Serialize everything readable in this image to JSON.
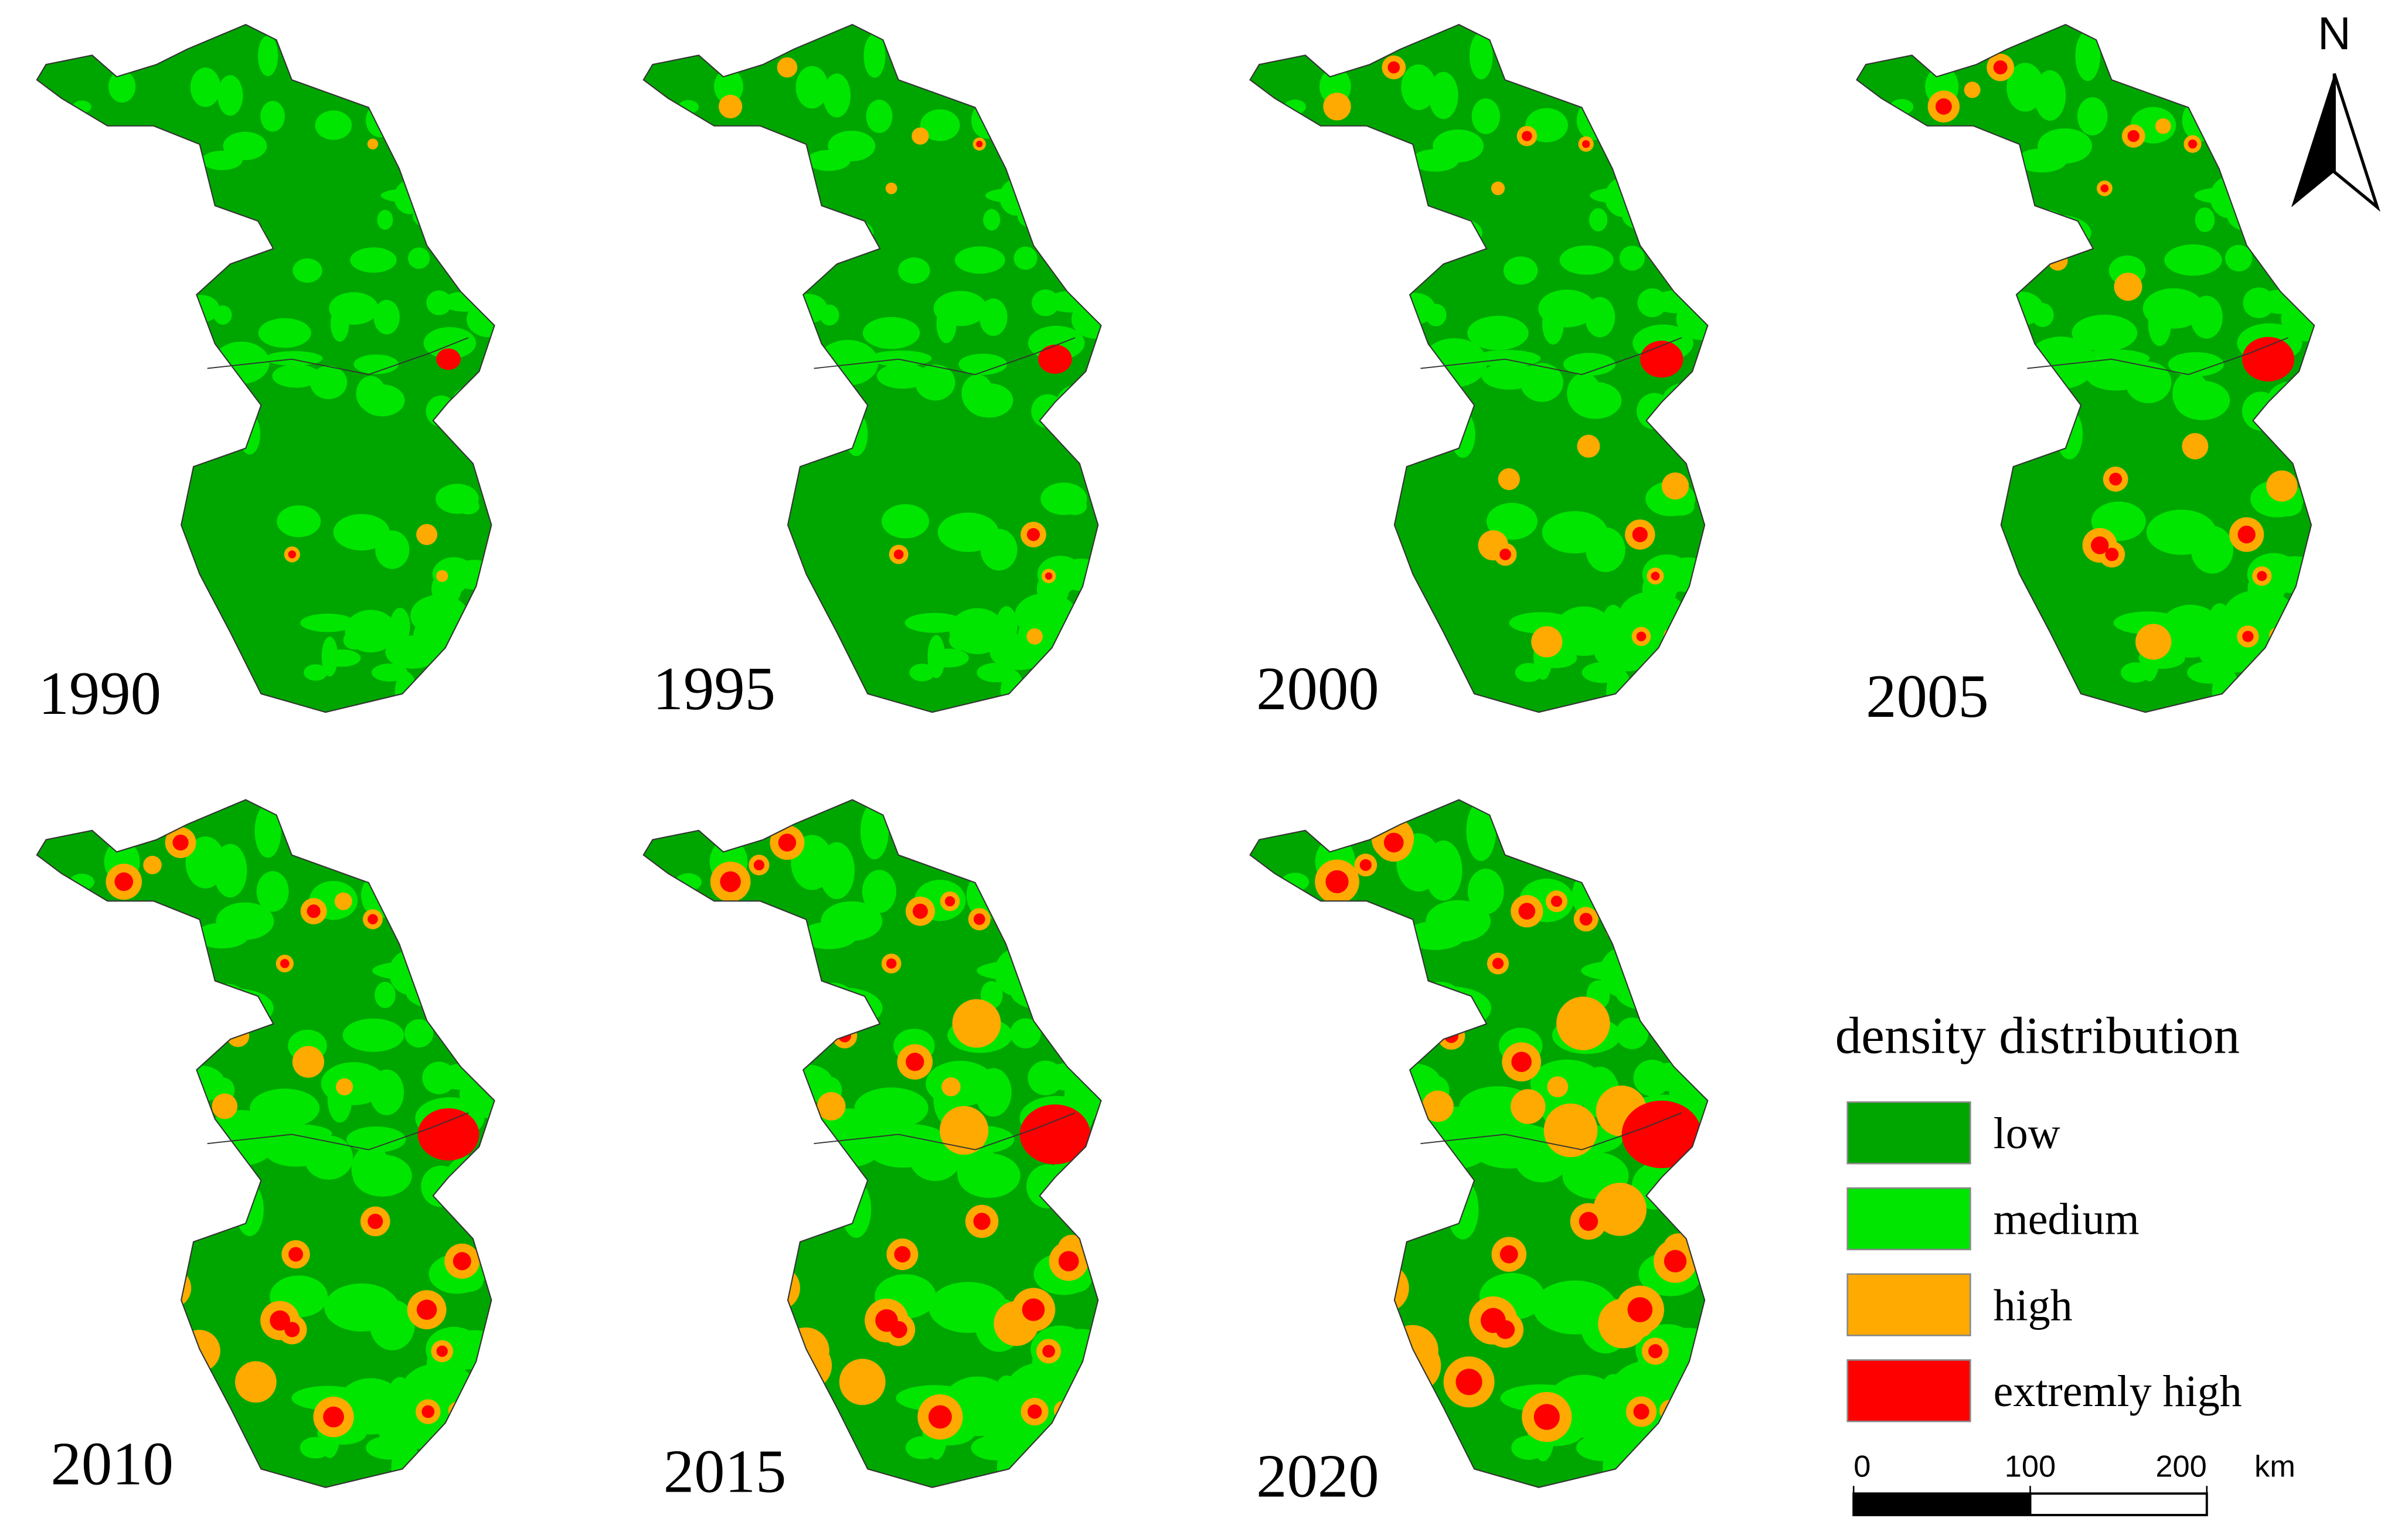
{
  "maps": [
    {
      "year": "1990"
    },
    {
      "year": "1995"
    },
    {
      "year": "2000"
    },
    {
      "year": "2005"
    },
    {
      "year": "2010"
    },
    {
      "year": "2015"
    },
    {
      "year": "2020"
    }
  ],
  "north_arrow": "N",
  "legend": {
    "title": "density distribution",
    "items": [
      {
        "label": "low",
        "color": "#00a600"
      },
      {
        "label": "medium",
        "color": "#00e600"
      },
      {
        "label": "high",
        "color": "#ffaa00"
      },
      {
        "label": "extremly high",
        "color": "#ff0000"
      }
    ]
  },
  "scale_bar": {
    "ticks": [
      0,
      100,
      200
    ],
    "unit": "km"
  }
}
